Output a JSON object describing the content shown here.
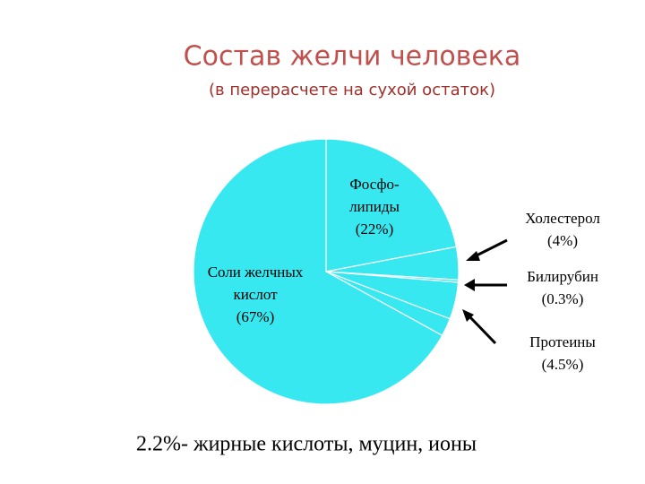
{
  "chart_data": {
    "type": "pie",
    "title": "Состав желчи человека",
    "subtitle": "(в перерасчете на сухой остаток)",
    "categories": [
      [
        "Фосфо-",
        "липиды"
      ],
      [
        "Холестерол"
      ],
      [
        "Билирубин"
      ],
      [
        "Протеины"
      ],
      null,
      [
        "Соли желчных",
        "кислот"
      ]
    ],
    "values": [
      22,
      4,
      0.3,
      4.5,
      2.2,
      67
    ],
    "value_labels": [
      "(22%)",
      "(4%)",
      "(0.3%)",
      "(4.5%)",
      null,
      "(67%)"
    ],
    "color": "#38e8f0",
    "annotation": "2.2%- жирные кислоты, муцин, ионы"
  }
}
